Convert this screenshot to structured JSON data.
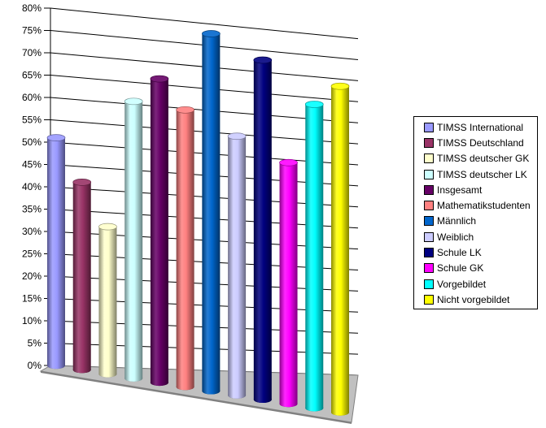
{
  "chart_data": {
    "type": "bar",
    "categories": [
      "TIMSS International",
      "TIMSS Deutschland",
      "TIMSS deutscher GK",
      "TIMSS deutscher LK",
      "Insgesamt",
      "Mathematikstudenten",
      "Männlich",
      "Weiblich",
      "Schule LK",
      "Schule GK",
      "Vorgebildet",
      "Nicht vorgebildet"
    ],
    "values": [
      51,
      42,
      33,
      62,
      68,
      62,
      80,
      58,
      76,
      54,
      68,
      73
    ],
    "colors": [
      "#9999ff",
      "#993366",
      "#ffffcc",
      "#ccffff",
      "#660066",
      "#ff8080",
      "#0066cc",
      "#ccccff",
      "#000080",
      "#ff00ff",
      "#00ffff",
      "#ffff00"
    ],
    "ylim": [
      0,
      80
    ],
    "yticks": [
      "0%",
      "5%",
      "10%",
      "15%",
      "20%",
      "25%",
      "30%",
      "35%",
      "40%",
      "45%",
      "50%",
      "55%",
      "60%",
      "65%",
      "70%",
      "75%",
      "80%"
    ],
    "grid": true,
    "legend": "right",
    "three_d": true,
    "bar_shape": "cylinder"
  }
}
